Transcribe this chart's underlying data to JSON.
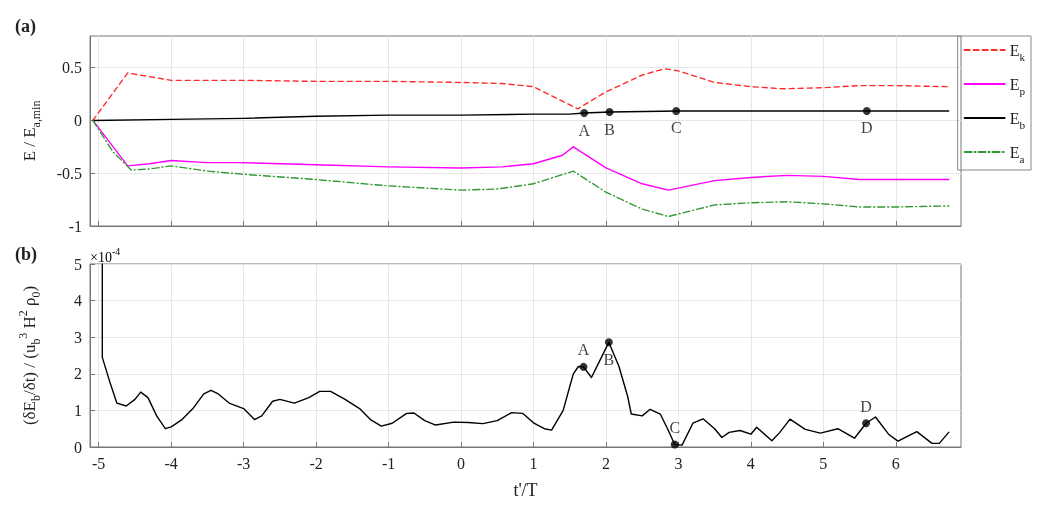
{
  "chart_data": [
    {
      "type": "line",
      "title": "(a)",
      "ylabel": "E / E$_{a,min}$",
      "xlim": [
        -5.12,
        6.9
      ],
      "xticks": [
        -5,
        -4,
        -3,
        -2,
        -1,
        0,
        1,
        2,
        3,
        4,
        5,
        6
      ],
      "ylim": [
        -1,
        0.8
      ],
      "yticks": [
        -1,
        -0.5,
        0,
        0.5
      ],
      "tick_labels": "y",
      "grid": true,
      "legend": "right",
      "series": [
        {
          "name": "E$_{k}$",
          "color": "#ff2a2a",
          "line_style": "dashed",
          "x": [
            -5.08,
            -4.6,
            -4.0,
            -3,
            -2,
            -1,
            0,
            0.57,
            1.0,
            1.61,
            2.0,
            2.5,
            2.81,
            3.0,
            3.5,
            4.0,
            4.44,
            5.0,
            5.5,
            6.0,
            6.73
          ],
          "values": [
            0,
            0.45,
            0.38,
            0.38,
            0.37,
            0.37,
            0.36,
            0.35,
            0.32,
            0.11,
            0.27,
            0.43,
            0.49,
            0.47,
            0.36,
            0.32,
            0.3,
            0.31,
            0.33,
            0.33,
            0.32
          ]
        },
        {
          "name": "E$_{p}$",
          "color": "#ff00ff",
          "line_style": "solid",
          "x": [
            -5.08,
            -4.8,
            -4.6,
            -4.3,
            -4.0,
            -3.5,
            -3,
            -2,
            -1,
            0,
            0.57,
            1.0,
            1.4,
            1.55,
            2.0,
            2.5,
            2.86,
            3.5,
            4.0,
            4.5,
            5.0,
            5.5,
            6.0,
            6.73
          ],
          "values": [
            0,
            -0.25,
            -0.43,
            -0.41,
            -0.38,
            -0.4,
            -0.4,
            -0.42,
            -0.44,
            -0.45,
            -0.44,
            -0.41,
            -0.33,
            -0.25,
            -0.45,
            -0.6,
            -0.66,
            -0.57,
            -0.54,
            -0.52,
            -0.53,
            -0.56,
            -0.56,
            -0.56
          ]
        },
        {
          "name": "E$_{b}$",
          "color": "#000000",
          "line_style": "solid",
          "x": [
            -5.08,
            -4,
            -3,
            -2,
            -1,
            0,
            1,
            1.5,
            1.7,
            2.05,
            3,
            4,
            5,
            6,
            6.73
          ],
          "values": [
            0,
            0.01,
            0.02,
            0.04,
            0.05,
            0.05,
            0.06,
            0.06,
            0.07,
            0.08,
            0.09,
            0.09,
            0.09,
            0.09,
            0.09
          ]
        },
        {
          "name": "E$_{a}$",
          "color": "#339933",
          "line_style": "dashdot",
          "x": [
            -5.08,
            -4.8,
            -4.55,
            -4.3,
            -4.0,
            -3.5,
            -3,
            -2,
            -1,
            0,
            0.5,
            1,
            1.55,
            2,
            2.5,
            2.86,
            3.5,
            4,
            4.5,
            5,
            5.5,
            6,
            6.73
          ],
          "values": [
            0,
            -0.3,
            -0.47,
            -0.46,
            -0.43,
            -0.48,
            -0.51,
            -0.56,
            -0.62,
            -0.66,
            -0.65,
            -0.6,
            -0.48,
            -0.68,
            -0.84,
            -0.91,
            -0.8,
            -0.78,
            -0.77,
            -0.79,
            -0.82,
            -0.82,
            -0.81
          ]
        },
        {
          "type": "scatter",
          "color": "#000000",
          "marker": "circle",
          "x": [
            1.7,
            2.05,
            2.97,
            5.6
          ],
          "values": [
            0.07,
            0.08,
            0.09,
            0.09
          ],
          "value_labels": [
            "A",
            "B",
            "C",
            "D"
          ]
        }
      ]
    },
    {
      "type": "line",
      "title": "(b)",
      "xlabel": "t'/T",
      "ylabel": "(δE$_{b}$/δt) / (u$_{b}$$^{3}$ H$^{2}$ ρ$_{0}$)",
      "annotations": [
        "×10$^{-4}$"
      ],
      "xlim": [
        -5.12,
        6.9
      ],
      "xticks": [
        -5,
        -4,
        -3,
        -2,
        -1,
        0,
        1,
        2,
        3,
        4,
        5,
        6
      ],
      "ylim": [
        0,
        5
      ],
      "yticks": [
        0,
        1,
        2,
        3,
        4,
        5
      ],
      "grid": true,
      "series": [
        {
          "color": "#000000",
          "line_style": "solid",
          "x": [
            -4.95,
            -4.95,
            -4.85,
            -4.75,
            -4.62,
            -4.5,
            -4.42,
            -4.32,
            -4.2,
            -4.08,
            -4.0,
            -3.85,
            -3.7,
            -3.55,
            -3.45,
            -3.35,
            -3.2,
            -3.0,
            -2.85,
            -2.75,
            -2.6,
            -2.5,
            -2.3,
            -2.1,
            -1.95,
            -1.8,
            -1.6,
            -1.4,
            -1.25,
            -1.1,
            -0.95,
            -0.75,
            -0.65,
            -0.5,
            -0.35,
            -0.1,
            0.1,
            0.3,
            0.5,
            0.7,
            0.85,
            1.0,
            1.15,
            1.25,
            1.41,
            1.55,
            1.62,
            1.69,
            1.8,
            1.9,
            2.04,
            2.18,
            2.3,
            2.35,
            2.5,
            2.61,
            2.75,
            2.85,
            2.95,
            3.05,
            3.2,
            3.34,
            3.5,
            3.6,
            3.7,
            3.85,
            4.0,
            4.08,
            4.29,
            4.4,
            4.54,
            4.75,
            4.96,
            5.2,
            5.43,
            5.59,
            5.72,
            5.9,
            6.03,
            6.29,
            6.5,
            6.6,
            6.73
          ],
          "values": [
            5.0,
            2.45,
            1.8,
            1.2,
            1.12,
            1.3,
            1.5,
            1.35,
            0.85,
            0.5,
            0.55,
            0.75,
            1.05,
            1.45,
            1.55,
            1.45,
            1.2,
            1.05,
            0.75,
            0.85,
            1.25,
            1.3,
            1.2,
            1.35,
            1.52,
            1.52,
            1.3,
            1.05,
            0.75,
            0.57,
            0.65,
            0.92,
            0.93,
            0.72,
            0.6,
            0.68,
            0.67,
            0.64,
            0.72,
            0.94,
            0.92,
            0.66,
            0.5,
            0.46,
            1.0,
            2.0,
            2.2,
            2.19,
            1.9,
            2.3,
            2.86,
            2.2,
            1.38,
            0.9,
            0.85,
            1.03,
            0.9,
            0.5,
            0.07,
            0.05,
            0.65,
            0.77,
            0.5,
            0.26,
            0.4,
            0.45,
            0.35,
            0.54,
            0.17,
            0.4,
            0.76,
            0.48,
            0.38,
            0.5,
            0.24,
            0.65,
            0.82,
            0.35,
            0.16,
            0.42,
            0.1,
            0.1,
            0.4
          ]
        },
        {
          "type": "scatter",
          "color": "#000000",
          "marker": "circle",
          "x": [
            1.69,
            2.04,
            2.95,
            5.59
          ],
          "values": [
            2.19,
            2.86,
            0.07,
            0.65
          ],
          "value_labels": [
            "A",
            "B",
            "C",
            "D"
          ]
        }
      ]
    }
  ]
}
